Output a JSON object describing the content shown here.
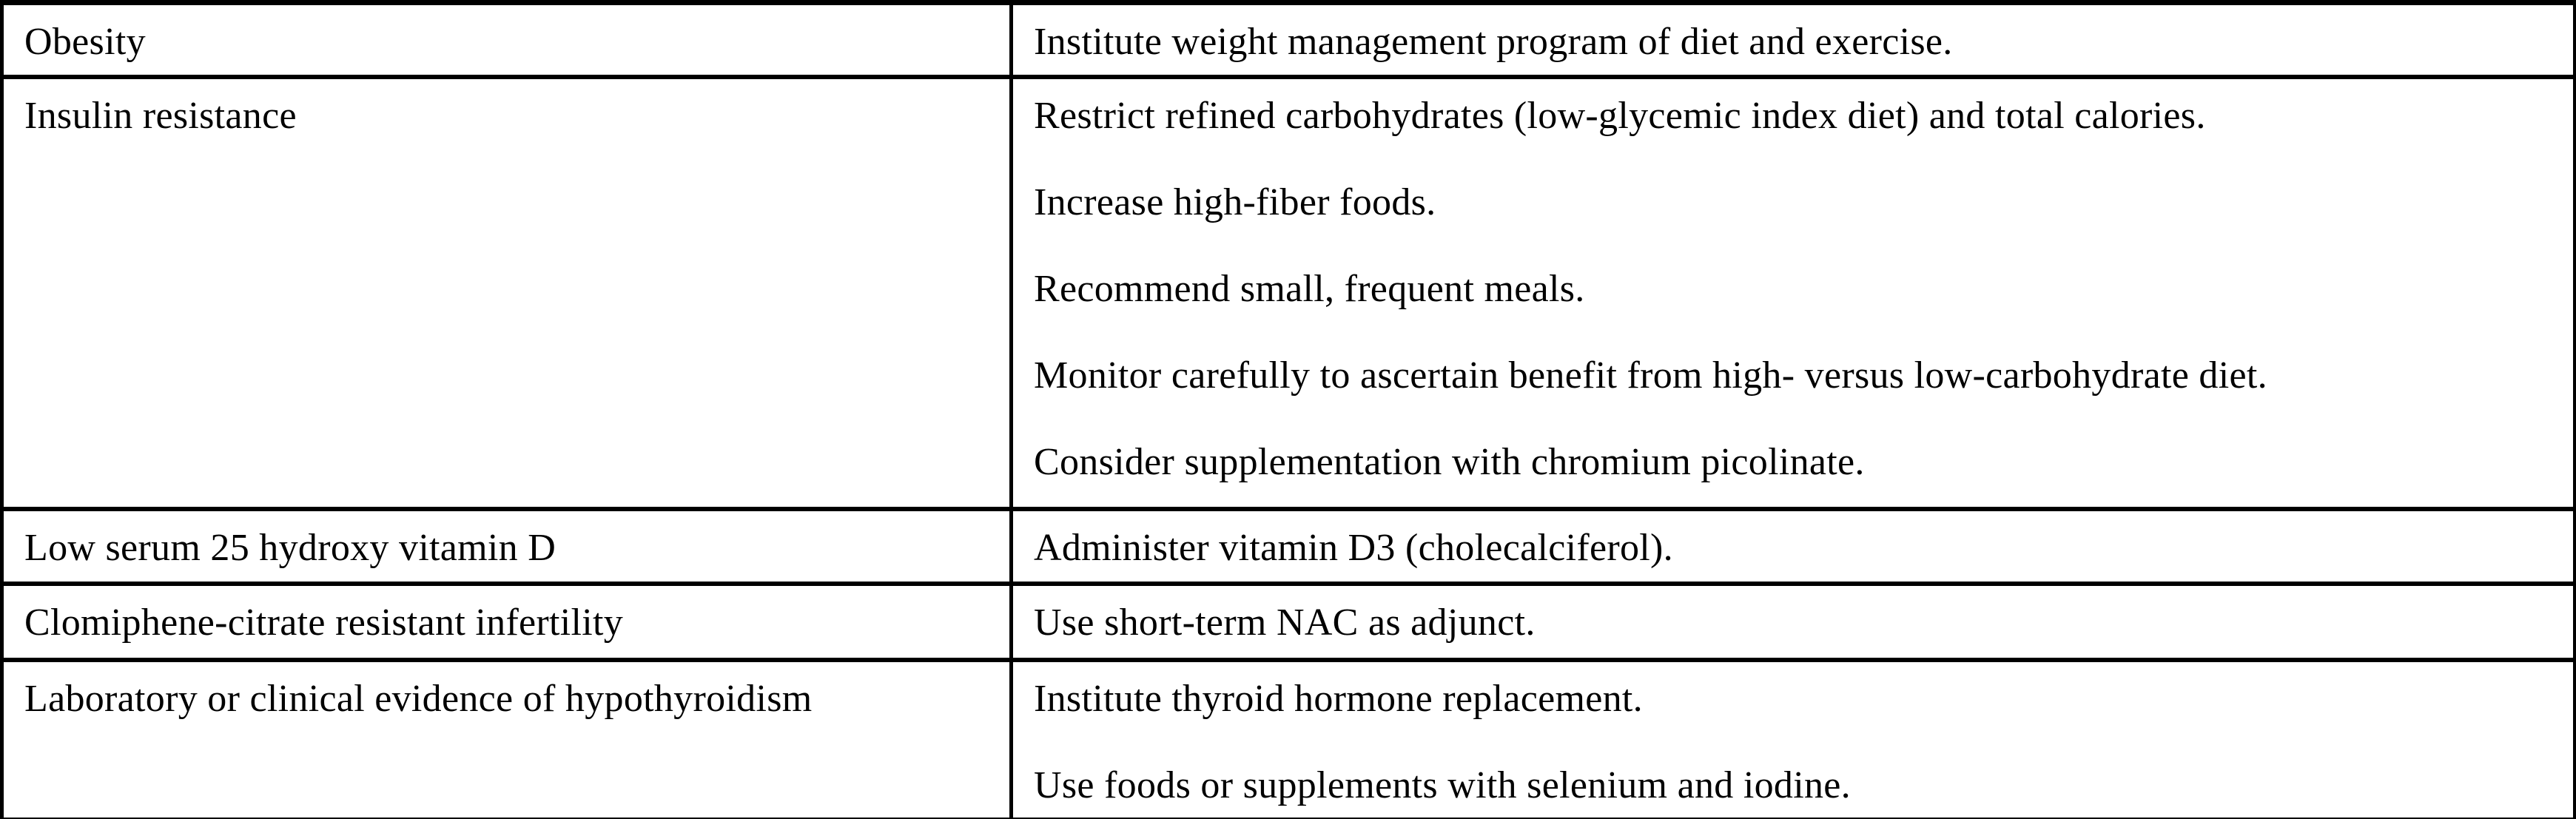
{
  "table": {
    "description": "Two-column medical table mapping clinical findings to management recommendations",
    "colors": {
      "border": "#000000",
      "text": "#000000",
      "background": "#ffffff"
    },
    "rows": [
      {
        "condition": "Obesity",
        "recommendations": [
          "Institute weight management program of diet and exercise."
        ]
      },
      {
        "condition": "Insulin resistance",
        "recommendations": [
          "Restrict refined carbohydrates (low-glycemic index diet) and total calories.",
          "Increase high-fiber foods.",
          "Recommend small, frequent meals.",
          "Monitor carefully to ascertain benefit from high- versus low-carbohydrate diet.",
          "Consider supplementation with chromium picolinate."
        ]
      },
      {
        "condition": "Low serum 25 hydroxy vitamin D",
        "recommendations": [
          "Administer vitamin D3 (cholecalciferol)."
        ]
      },
      {
        "condition": "Clomiphene-citrate resistant infertility",
        "recommendations": [
          "Use short-term NAC as adjunct."
        ]
      },
      {
        "condition": "Laboratory or clinical evidence of hypothyroidism",
        "recommendations": [
          "Institute thyroid hormone replacement.",
          "Use foods or supplements with selenium and iodine."
        ]
      }
    ]
  }
}
